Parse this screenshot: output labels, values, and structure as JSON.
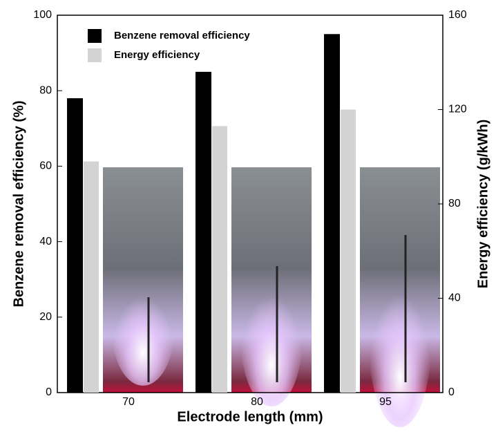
{
  "chart_data": {
    "type": "bar",
    "xlabel": "Electrode length (mm)",
    "ylabel": "Benzene removal efficiency (%)",
    "y2label": "Energy efficiency (g/kWh)",
    "categories": [
      "70",
      "80",
      "95"
    ],
    "series": [
      {
        "name": "Benzene removal efficiency",
        "color": "#000000",
        "values": [
          78,
          85,
          95
        ]
      },
      {
        "name": "Energy efficiency",
        "color": "#d3d3d3",
        "values": [
          98,
          113,
          120
        ],
        "axis": "y2"
      }
    ],
    "ylim": [
      0,
      100
    ],
    "yticks": [
      0,
      20,
      40,
      60,
      80,
      100
    ],
    "y2lim": [
      0,
      160
    ],
    "y2ticks": [
      0,
      40,
      80,
      120,
      160
    ],
    "legend": "upper left",
    "grid": false
  }
}
